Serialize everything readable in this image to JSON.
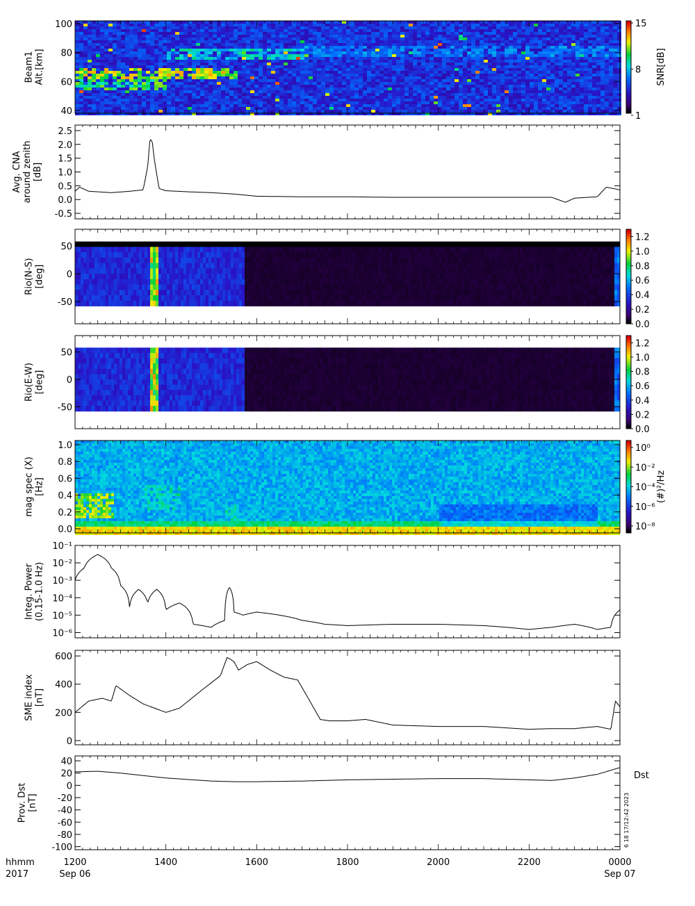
{
  "footer": {
    "time_label": "hhmm",
    "year_label": "2017",
    "start_date": "Sep 06",
    "end_date": "Sep 07",
    "x_ticks": [
      "1200",
      "1400",
      "1600",
      "1800",
      "2000",
      "2200",
      "0000"
    ]
  },
  "side_stamp": "6 18 17/12:42 2023",
  "chart_data": [
    {
      "id": "beam1",
      "type": "heatmap",
      "ylabel": [
        "Beam1",
        "Alt.[km]"
      ],
      "ylim": [
        40,
        100
      ],
      "yticks": [
        40,
        60,
        80,
        100
      ],
      "colorbar": {
        "label": "SNR[dB]",
        "ticks": [
          "1",
          "8",
          "15"
        ],
        "range": [
          1,
          15
        ]
      },
      "features": [
        {
          "t_start": 1200,
          "t_end": 1530,
          "alt": 66,
          "level": 13
        },
        {
          "t_start": 1200,
          "t_end": 1400,
          "alt": 58,
          "level": 11
        },
        {
          "t_start": 1400,
          "t_end": 1700,
          "alt": 80,
          "level": 9
        },
        {
          "t_start": 1700,
          "t_end": 2400,
          "alt": 82,
          "level": 7
        }
      ]
    },
    {
      "id": "cna",
      "type": "line",
      "ylabel": [
        "Avg. CNA",
        "around zenith",
        "[dB]"
      ],
      "ylim": [
        -0.7,
        2.7
      ],
      "yticks": [
        "-0.5",
        "0.0",
        "0.5",
        "1.0",
        "1.5",
        "2.0",
        "2.5"
      ],
      "x_hours": [
        12.0,
        12.1,
        12.3,
        12.8,
        13.2,
        13.5,
        13.6,
        13.65,
        13.7,
        13.75,
        13.85,
        14.0,
        14.5,
        15.0,
        15.5,
        16.0,
        17.0,
        18.0,
        19.0,
        20.0,
        21.0,
        22.0,
        22.5,
        22.8,
        23.0,
        23.5,
        23.7,
        24.0
      ],
      "values": [
        0.3,
        0.45,
        0.3,
        0.25,
        0.3,
        0.35,
        1.2,
        2.2,
        2.1,
        1.4,
        0.4,
        0.32,
        0.28,
        0.25,
        0.2,
        0.12,
        0.1,
        0.1,
        0.08,
        0.08,
        0.08,
        0.08,
        0.08,
        -0.1,
        0.05,
        0.1,
        0.45,
        0.35
      ]
    },
    {
      "id": "rio_ns",
      "type": "heatmap",
      "ylabel": [
        "Rio(N-S)",
        "[deg]"
      ],
      "ylim": [
        -90,
        80
      ],
      "yticks": [
        "-50",
        "0",
        "50"
      ],
      "colorbar": {
        "label": "",
        "ticks": [
          "0.0",
          "0.2",
          "0.4",
          "0.6",
          "0.8",
          "1.0",
          "1.2"
        ],
        "range": [
          0,
          1.3
        ]
      },
      "features": [
        {
          "t_start": 13.65,
          "t_end": 13.8,
          "level": 1.0
        },
        {
          "t_start": 12.0,
          "t_end": 15.7,
          "level": 0.35
        },
        {
          "t_start": 15.7,
          "t_end": 23.85,
          "level": 0.05
        },
        {
          "t_start": 23.85,
          "t_end": 24.0,
          "level": 0.5
        }
      ]
    },
    {
      "id": "rio_ew",
      "type": "heatmap",
      "ylabel": [
        "Rio(E-W)",
        "[deg]"
      ],
      "ylim": [
        -90,
        80
      ],
      "yticks": [
        "-50",
        "0",
        "50"
      ],
      "colorbar": {
        "label": "",
        "ticks": [
          "0.0",
          "0.2",
          "0.4",
          "0.6",
          "0.8",
          "1.0",
          "1.2"
        ],
        "range": [
          0,
          1.3
        ]
      },
      "features": [
        {
          "t_start": 13.65,
          "t_end": 13.8,
          "level": 1.0
        },
        {
          "t_start": 12.0,
          "t_end": 15.7,
          "level": 0.35
        },
        {
          "t_start": 15.7,
          "t_end": 23.85,
          "level": 0.05
        },
        {
          "t_start": 23.85,
          "t_end": 24.0,
          "level": 0.5
        }
      ]
    },
    {
      "id": "mag_spec",
      "type": "heatmap",
      "ylabel": [
        "mag spec (X)",
        "[Hz]"
      ],
      "ylim": [
        -0.05,
        1.05
      ],
      "yticks": [
        "0.0",
        "0.2",
        "0.4",
        "0.6",
        "0.8",
        "1.0"
      ],
      "colorbar": {
        "label": "(#)²/Hz",
        "ticks": [
          "10⁻⁸",
          "10⁻⁶",
          "10⁻⁴",
          "10⁻²",
          "10⁰"
        ],
        "range": [
          -9,
          1
        ]
      },
      "features": [
        {
          "t_start": 12.0,
          "t_end": 12.8,
          "freq": 0.3,
          "level": -1
        },
        {
          "t_start": 13.5,
          "t_end": 14.3,
          "freq": 0.4,
          "level": -3
        },
        {
          "t_start": 15.3,
          "t_end": 15.6,
          "freq": 0.15,
          "level": -3
        }
      ]
    },
    {
      "id": "integ_power",
      "type": "line",
      "ylabel": [
        "Integ. Power",
        "(0.15-1.0 Hz)"
      ],
      "yscale": "log",
      "ylim": [
        5e-07,
        0.1
      ],
      "yticks": [
        "10⁻⁶",
        "10⁻⁵",
        "10⁻⁴",
        "10⁻³",
        "10⁻²",
        "10⁻¹"
      ],
      "x_hours": [
        12.0,
        12.2,
        12.5,
        12.8,
        13.0,
        13.2,
        13.4,
        13.6,
        13.8,
        14.0,
        14.3,
        14.6,
        15.0,
        15.3,
        15.4,
        15.5,
        15.7,
        16.0,
        16.5,
        17.0,
        17.5,
        18.0,
        19.0,
        20.0,
        21.0,
        22.0,
        22.5,
        23.0,
        23.5,
        23.8,
        24.0
      ],
      "values": [
        0.001,
        0.005,
        0.03,
        0.005,
        0.0005,
        3e-05,
        0.0003,
        5e-05,
        0.0003,
        2e-05,
        5e-05,
        3e-06,
        2e-06,
        5e-06,
        0.0004,
        1.5e-05,
        1e-05,
        1.5e-05,
        1e-05,
        5e-06,
        3e-06,
        2.5e-06,
        3e-06,
        3e-06,
        2.5e-06,
        1.5e-06,
        2e-06,
        3e-06,
        1.5e-06,
        2e-06,
        2e-05
      ]
    },
    {
      "id": "sme",
      "type": "line",
      "ylabel": [
        "SME index",
        "[nT]"
      ],
      "ylim": [
        -30,
        640
      ],
      "yticks": [
        "0",
        "200",
        "400",
        "600"
      ],
      "x_hours": [
        12.0,
        12.3,
        12.6,
        12.8,
        12.9,
        13.2,
        13.5,
        14.0,
        14.3,
        14.8,
        15.2,
        15.35,
        15.5,
        15.6,
        15.8,
        16.0,
        16.3,
        16.6,
        16.9,
        17.1,
        17.4,
        17.6,
        18.0,
        18.4,
        19.0,
        20.0,
        21.0,
        22.0,
        22.5,
        23.0,
        23.5,
        23.8,
        23.9,
        24.0
      ],
      "values": [
        200,
        280,
        300,
        280,
        390,
        320,
        260,
        200,
        230,
        360,
        460,
        590,
        560,
        500,
        540,
        560,
        500,
        450,
        430,
        320,
        150,
        140,
        140,
        150,
        110,
        100,
        100,
        80,
        85,
        85,
        100,
        80,
        280,
        240
      ]
    },
    {
      "id": "dst",
      "type": "line",
      "ylabel": [
        "Prov. Dst",
        "[nT]"
      ],
      "ylim": [
        -105,
        48
      ],
      "yticks": [
        "-100",
        "-80",
        "-60",
        "-40",
        "-20",
        "0",
        "20",
        "40"
      ],
      "right_label": "Dst",
      "x_hours": [
        12.0,
        12.5,
        13.0,
        14.0,
        15.0,
        15.5,
        16.0,
        17.0,
        18.0,
        19.0,
        20.0,
        21.0,
        22.0,
        22.5,
        23.0,
        23.5,
        24.0
      ],
      "values": [
        22,
        23,
        20,
        12,
        7,
        6,
        6,
        7,
        9,
        10,
        11,
        11,
        9,
        8,
        12,
        18,
        29
      ]
    }
  ]
}
